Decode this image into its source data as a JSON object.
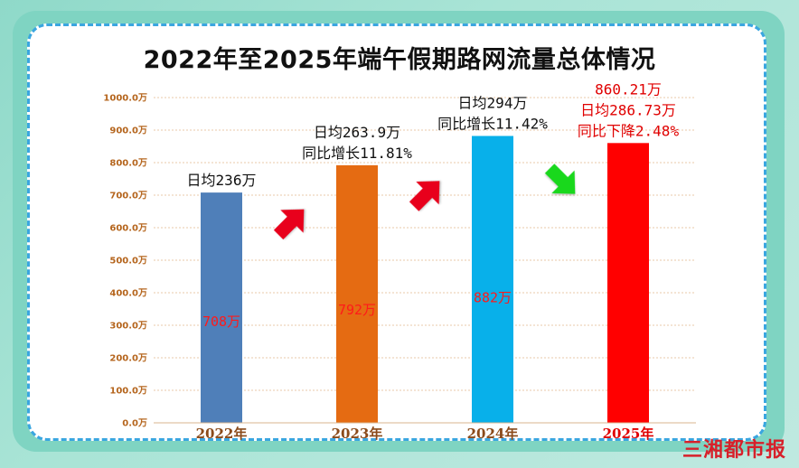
{
  "title": "2022年至2025年端午假期路网流量总体情况",
  "watermark": "三湘都市报",
  "chart_data": {
    "type": "bar",
    "title": "2022年至2025年端午假期路网流量总体情况",
    "xlabel": "",
    "ylabel": "",
    "ylim": [
      0,
      1000
    ],
    "yticks": [
      "0.0万",
      "100.0万",
      "200.0万",
      "300.0万",
      "400.0万",
      "500.0万",
      "600.0万",
      "700.0万",
      "800.0万",
      "900.0万",
      "1000.0万"
    ],
    "grid": true,
    "categories": [
      "2022年",
      "2023年",
      "2024年",
      "2025年"
    ],
    "values": [
      708,
      792,
      882,
      860.21
    ],
    "bar_colors": [
      "#4f7fb9",
      "#e56b12",
      "#08b0ea",
      "#ff0000"
    ],
    "category_label_colors": [
      "#8b4a1a",
      "#8b4a1a",
      "#8b4a1a",
      "#e00000"
    ],
    "value_labels": [
      "708万",
      "792万",
      "882万",
      ""
    ],
    "annotations": [
      [
        "日均236万"
      ],
      [
        "日均263.9万",
        "同比增长11.81%"
      ],
      [
        "日均294万",
        "同比增长11.42%"
      ],
      [
        "860.21万",
        "日均286.73万",
        "同比下降2.48%"
      ]
    ],
    "annotation_colors": [
      "#111111",
      "#111111",
      "#111111",
      "#e00000"
    ],
    "trend_arrows": [
      {
        "between": [
          "2022年",
          "2023年"
        ],
        "direction": "up",
        "color": "#e8001c"
      },
      {
        "between": [
          "2023年",
          "2024年"
        ],
        "direction": "up",
        "color": "#e8001c"
      },
      {
        "between": [
          "2024年",
          "2025年"
        ],
        "direction": "down",
        "color": "#19d81c"
      }
    ]
  }
}
